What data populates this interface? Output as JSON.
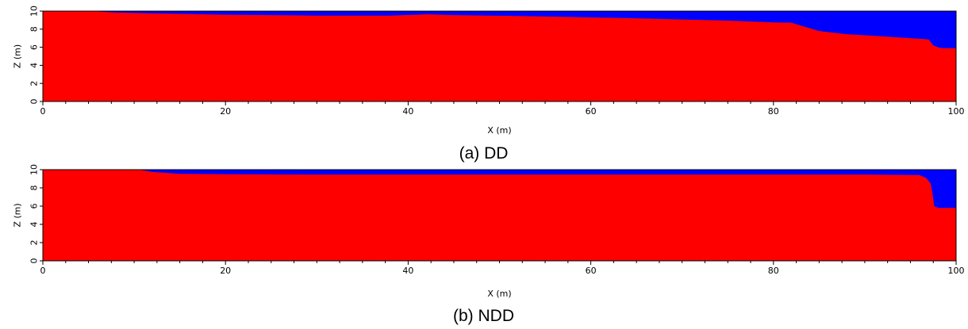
{
  "chart_data": [
    {
      "type": "area",
      "caption": "(a) DD",
      "xlabel": "X (m)",
      "ylabel": "Z (m)",
      "xlim": [
        0,
        100
      ],
      "ylim": [
        0,
        10
      ],
      "xticks": [
        0,
        20,
        40,
        60,
        80,
        100
      ],
      "yticks": [
        0,
        2,
        4,
        6,
        8,
        10
      ],
      "colors": {
        "lower": "#ff0000",
        "upper": "#0000ff"
      },
      "interface": {
        "x": [
          0,
          5,
          8,
          12,
          20,
          30,
          38,
          41,
          42,
          45,
          55,
          65,
          75,
          80,
          82,
          83,
          85,
          88,
          92,
          95,
          96.5,
          97,
          97.5,
          98,
          98.5,
          100
        ],
        "z": [
          10,
          10,
          9.85,
          9.75,
          9.6,
          9.5,
          9.5,
          9.6,
          9.65,
          9.55,
          9.4,
          9.2,
          8.95,
          8.75,
          8.7,
          8.4,
          7.8,
          7.45,
          7.2,
          7.0,
          6.9,
          6.85,
          6.2,
          6.0,
          5.9,
          5.9
        ]
      }
    },
    {
      "type": "area",
      "caption": "(b) NDD",
      "xlabel": "X (m)",
      "ylabel": "Z (m)",
      "xlim": [
        0,
        100
      ],
      "ylim": [
        0,
        10
      ],
      "xticks": [
        0,
        20,
        40,
        60,
        80,
        100
      ],
      "yticks": [
        0,
        2,
        4,
        6,
        8,
        10
      ],
      "colors": {
        "lower": "#ff0000",
        "upper": "#0000ff"
      },
      "interface": {
        "x": [
          0,
          10.5,
          12,
          15,
          20,
          30,
          40,
          50,
          60,
          70,
          80,
          90,
          96,
          96.7,
          97.2,
          97.4,
          97.6,
          98,
          100
        ],
        "z": [
          10,
          10,
          9.75,
          9.55,
          9.5,
          9.45,
          9.45,
          9.45,
          9.45,
          9.45,
          9.45,
          9.45,
          9.4,
          9.1,
          8.5,
          7.5,
          6.0,
          5.8,
          5.8
        ]
      }
    }
  ]
}
